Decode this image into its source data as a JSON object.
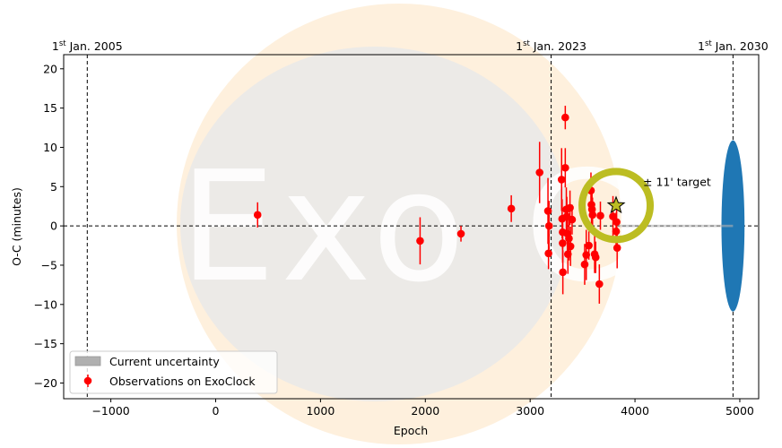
{
  "chart_data": {
    "type": "scatter",
    "xlabel": "Epoch",
    "ylabel": "O-C (minutes)",
    "xlim": [
      -1450,
      5180
    ],
    "ylim": [
      -22,
      21.8
    ],
    "x_ticks": [
      -1000,
      0,
      1000,
      2000,
      3000,
      4000,
      5000
    ],
    "x_tick_labels": [
      "−1000",
      "0",
      "1000",
      "2000",
      "3000",
      "4000",
      "5000"
    ],
    "y_ticks": [
      -20,
      -15,
      -10,
      -5,
      0,
      5,
      10,
      15,
      20
    ],
    "y_tick_labels": [
      "−20",
      "−15",
      "−10",
      "−5",
      "0",
      "5",
      "10",
      "15",
      "20"
    ],
    "date_markers": [
      {
        "epoch": -1225,
        "sup": "st",
        "pre": "1",
        "post": " Jan. 2005"
      },
      {
        "epoch": 3200,
        "sup": "st",
        "pre": "1",
        "post": " Jan. 2023"
      },
      {
        "epoch": 4935,
        "sup": "st",
        "pre": "1",
        "post": " Jan. 2030"
      }
    ],
    "zero_line": 0,
    "current_uncertainty": {
      "center_epoch": 4935,
      "half_width_epoch": 110,
      "half_height": 10.9,
      "color": "#1f77b4"
    },
    "target": {
      "epoch": 3820,
      "oc": 2.6,
      "color": "#bcbd22",
      "label": "11' target",
      "label_prefix": "±"
    },
    "observations": {
      "name": "Observations on ExoClock",
      "color": "#ff0000",
      "points": [
        {
          "x": 400,
          "y": 1.4,
          "err": 1.6
        },
        {
          "x": 1950,
          "y": -1.9,
          "err": 3.0
        },
        {
          "x": 2340,
          "y": -1.0,
          "err": 1.0
        },
        {
          "x": 2820,
          "y": 2.2,
          "err": 1.7
        },
        {
          "x": 3090,
          "y": 6.8,
          "err": 3.9
        },
        {
          "x": 3170,
          "y": 1.9,
          "err": 4.2
        },
        {
          "x": 3180,
          "y": 0.0,
          "err": 3.2
        },
        {
          "x": 3175,
          "y": -3.5,
          "err": 2.0
        },
        {
          "x": 3300,
          "y": 5.9,
          "err": 4.0
        },
        {
          "x": 3305,
          "y": 0.9,
          "err": 2.5
        },
        {
          "x": 3310,
          "y": -0.8,
          "err": 2.2
        },
        {
          "x": 3310,
          "y": -2.2,
          "err": 2.5
        },
        {
          "x": 3312,
          "y": -5.9,
          "err": 2.8
        },
        {
          "x": 3335,
          "y": 13.8,
          "err": 1.5
        },
        {
          "x": 3335,
          "y": 7.4,
          "err": 2.5
        },
        {
          "x": 3345,
          "y": 2.1,
          "err": 2.8
        },
        {
          "x": 3350,
          "y": 1.2,
          "err": 2.5
        },
        {
          "x": 3355,
          "y": -1.0,
          "err": 2.2
        },
        {
          "x": 3360,
          "y": -3.6,
          "err": 2.5
        },
        {
          "x": 3370,
          "y": -1.6,
          "err": 2.8
        },
        {
          "x": 3380,
          "y": 2.3,
          "err": 2.2
        },
        {
          "x": 3385,
          "y": -2.6,
          "err": 2.5
        },
        {
          "x": 3400,
          "y": 0.8,
          "err": 1.9
        },
        {
          "x": 3520,
          "y": -4.9,
          "err": 2.6
        },
        {
          "x": 3535,
          "y": -3.7,
          "err": 3.2
        },
        {
          "x": 3560,
          "y": -2.5,
          "err": 1.8
        },
        {
          "x": 3580,
          "y": 4.5,
          "err": 2.3
        },
        {
          "x": 3585,
          "y": 2.7,
          "err": 2.6
        },
        {
          "x": 3590,
          "y": 2.1,
          "err": 2.4
        },
        {
          "x": 3595,
          "y": 1.4,
          "err": 2.2
        },
        {
          "x": 3615,
          "y": -3.6,
          "err": 2.4
        },
        {
          "x": 3625,
          "y": -4.0,
          "err": 2.0
        },
        {
          "x": 3660,
          "y": -7.4,
          "err": 2.5
        },
        {
          "x": 3670,
          "y": 1.3,
          "err": 1.8
        },
        {
          "x": 3790,
          "y": 1.2,
          "err": 2.6
        },
        {
          "x": 3820,
          "y": -0.7,
          "err": 2.4
        },
        {
          "x": 3825,
          "y": 0.5,
          "err": 2.2
        },
        {
          "x": 3830,
          "y": -2.8,
          "err": 2.6
        }
      ]
    },
    "legend": {
      "placement": "lower-left",
      "entries": [
        {
          "label": "Current uncertainty",
          "swatch": "#b0b0b0"
        },
        {
          "label": "Observations on ExoClock",
          "swatch": "#ff0000"
        }
      ]
    },
    "grid": false,
    "watermark_text": "Exo Clock"
  }
}
